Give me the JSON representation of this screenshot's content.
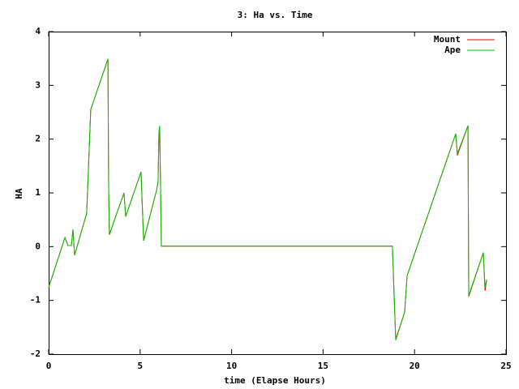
{
  "chart_data": {
    "type": "line",
    "title": "3: Ha vs. Time",
    "x_label": "time (Elapse Hours)",
    "y_label": "HA",
    "xlim": [
      0,
      25
    ],
    "xticks": [
      0,
      5,
      10,
      15,
      20,
      25
    ],
    "ylim": [
      -2,
      4
    ],
    "yticks": [
      -2,
      -1,
      0,
      1,
      2,
      3,
      4
    ],
    "legend": "upper right",
    "series": [
      {
        "name": "Mount",
        "color": "#ff0000",
        "x": [
          0,
          0.89,
          1.06,
          1.24,
          1.33,
          1.42,
          2.08,
          2.3,
          3.24,
          3.28,
          3.32,
          3.59,
          4.12,
          4.21,
          5.05,
          5.19,
          5.9,
          5.98,
          6.03,
          6.07,
          6.16,
          18.79,
          18.88,
          18.97,
          19.46,
          19.59,
          22.25,
          22.34,
          22.92,
          22.96,
          23.76,
          23.85,
          23.94
        ],
        "values": [
          -0.76,
          0.17,
          0.02,
          0.02,
          0.32,
          -0.16,
          0.62,
          2.55,
          3.49,
          1.05,
          0.22,
          0.49,
          1.0,
          0.56,
          1.39,
          0.11,
          1.05,
          1.2,
          2.1,
          2.22,
          0.01,
          0.01,
          -0.9,
          -1.72,
          -1.22,
          -0.54,
          2.1,
          1.7,
          2.25,
          -0.93,
          -0.11,
          -0.82,
          -0.62
        ]
      },
      {
        "name": "Ape",
        "color": "#00c000",
        "x": [
          0,
          0.89,
          1.06,
          1.24,
          1.33,
          1.42,
          2.08,
          2.3,
          3.24,
          3.28,
          3.32,
          3.59,
          4.12,
          4.21,
          5.05,
          5.19,
          5.9,
          5.98,
          6.03,
          6.07,
          6.16,
          18.79,
          18.88,
          18.97,
          19.46,
          19.59,
          22.25,
          22.34,
          22.92,
          22.96,
          23.76,
          23.85,
          23.94
        ],
        "values": [
          -0.76,
          0.17,
          0.02,
          0.02,
          0.32,
          -0.16,
          0.62,
          2.55,
          3.49,
          1.05,
          0.22,
          0.49,
          1.0,
          0.56,
          1.39,
          0.11,
          1.05,
          1.2,
          2.13,
          2.25,
          0.01,
          0.01,
          -0.84,
          -1.74,
          -1.22,
          -0.54,
          2.1,
          1.73,
          2.25,
          -0.91,
          -0.11,
          -0.76,
          -0.61
        ]
      }
    ]
  }
}
